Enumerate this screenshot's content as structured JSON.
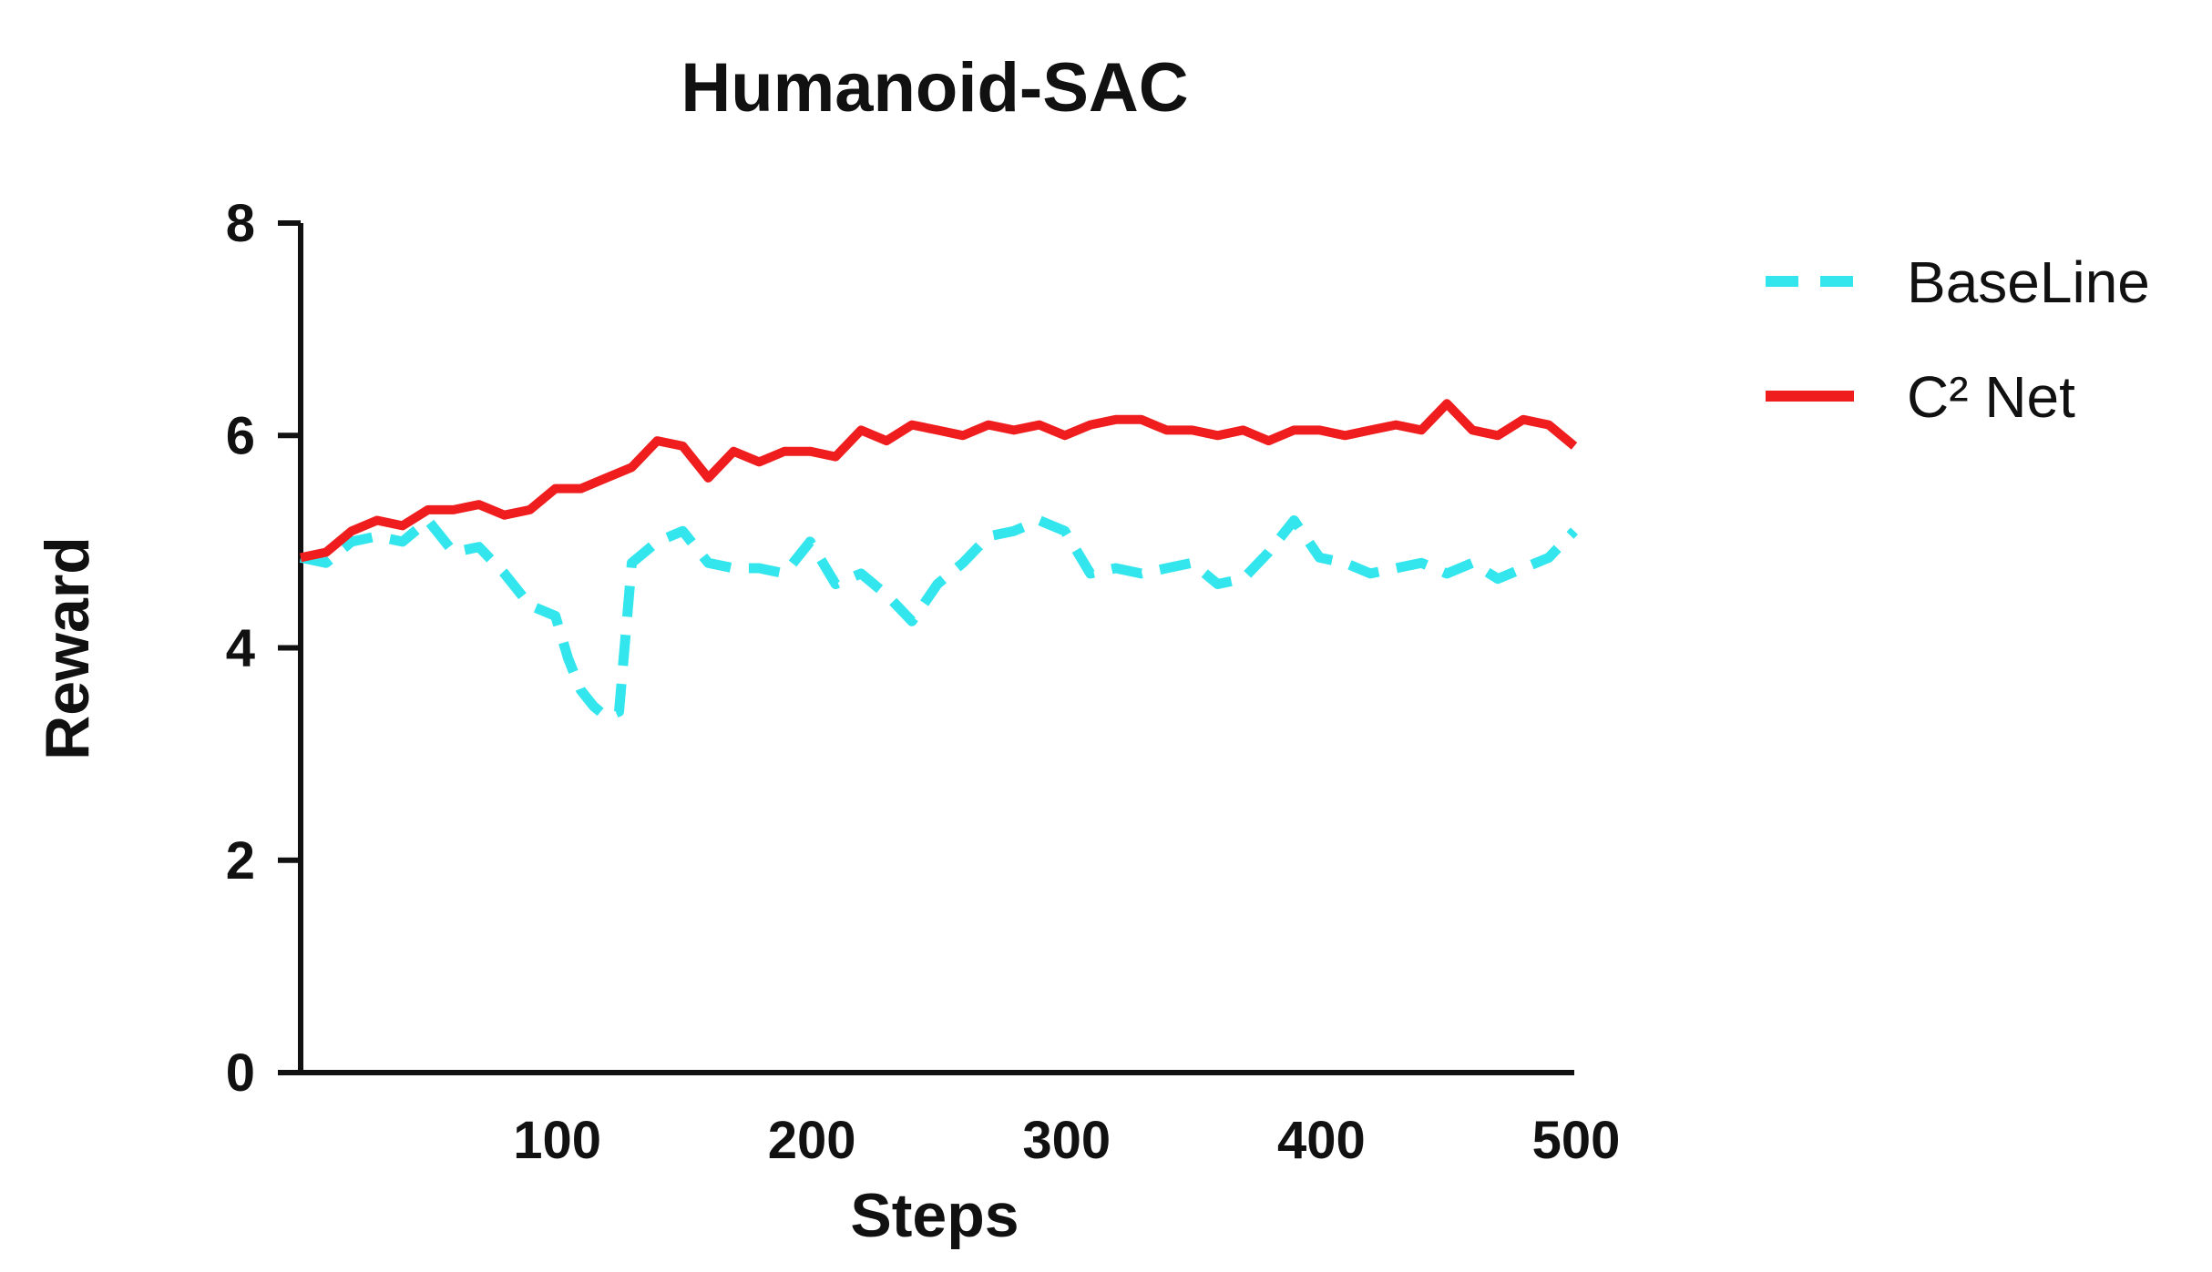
{
  "chart_data": {
    "type": "line",
    "title": "Humanoid-SAC",
    "xlabel": "Steps",
    "ylabel": "Reward",
    "xlim": [
      0,
      500
    ],
    "ylim": [
      0,
      8
    ],
    "xticks": [
      100,
      200,
      300,
      400,
      500
    ],
    "yticks": [
      0,
      2,
      4,
      6,
      8
    ],
    "grid": false,
    "legend_position": "top-right",
    "series": [
      {
        "name": "BaseLine",
        "color": "#33e6ee",
        "style": "dashed",
        "x": [
          0,
          10,
          20,
          30,
          40,
          50,
          60,
          70,
          80,
          90,
          100,
          105,
          110,
          115,
          120,
          125,
          130,
          140,
          150,
          160,
          170,
          180,
          190,
          200,
          210,
          220,
          230,
          240,
          250,
          260,
          270,
          280,
          290,
          300,
          310,
          320,
          330,
          340,
          350,
          360,
          370,
          380,
          390,
          400,
          410,
          420,
          430,
          440,
          450,
          460,
          470,
          480,
          490,
          500
        ],
        "y": [
          4.85,
          4.8,
          5.0,
          5.05,
          5.0,
          5.2,
          4.9,
          4.95,
          4.7,
          4.4,
          4.3,
          3.9,
          3.6,
          3.45,
          3.35,
          3.4,
          4.8,
          5.0,
          5.1,
          4.8,
          4.75,
          4.75,
          4.7,
          5.0,
          4.6,
          4.7,
          4.5,
          4.25,
          4.6,
          4.8,
          5.05,
          5.1,
          5.2,
          5.1,
          4.7,
          4.75,
          4.7,
          4.75,
          4.8,
          4.6,
          4.65,
          4.9,
          5.2,
          4.85,
          4.8,
          4.7,
          4.75,
          4.8,
          4.7,
          4.8,
          4.65,
          4.75,
          4.85,
          5.1
        ]
      },
      {
        "name": "C² Net",
        "color": "#ef1d1d",
        "style": "solid",
        "x": [
          0,
          10,
          20,
          30,
          40,
          50,
          60,
          70,
          80,
          90,
          100,
          110,
          120,
          130,
          140,
          150,
          160,
          170,
          180,
          190,
          200,
          210,
          220,
          230,
          240,
          250,
          260,
          270,
          280,
          290,
          300,
          310,
          320,
          330,
          340,
          350,
          360,
          370,
          380,
          390,
          400,
          410,
          420,
          430,
          440,
          450,
          460,
          470,
          480,
          490,
          500
        ],
        "y": [
          4.85,
          4.9,
          5.1,
          5.2,
          5.15,
          5.3,
          5.3,
          5.35,
          5.25,
          5.3,
          5.5,
          5.5,
          5.6,
          5.7,
          5.95,
          5.9,
          5.6,
          5.85,
          5.75,
          5.85,
          5.85,
          5.8,
          6.05,
          5.95,
          6.1,
          6.05,
          6.0,
          6.1,
          6.05,
          6.1,
          6.0,
          6.1,
          6.15,
          6.15,
          6.05,
          6.05,
          6.0,
          6.05,
          5.95,
          6.05,
          6.05,
          6.0,
          6.05,
          6.1,
          6.05,
          6.3,
          6.05,
          6.0,
          6.15,
          6.1,
          5.9
        ]
      }
    ]
  }
}
